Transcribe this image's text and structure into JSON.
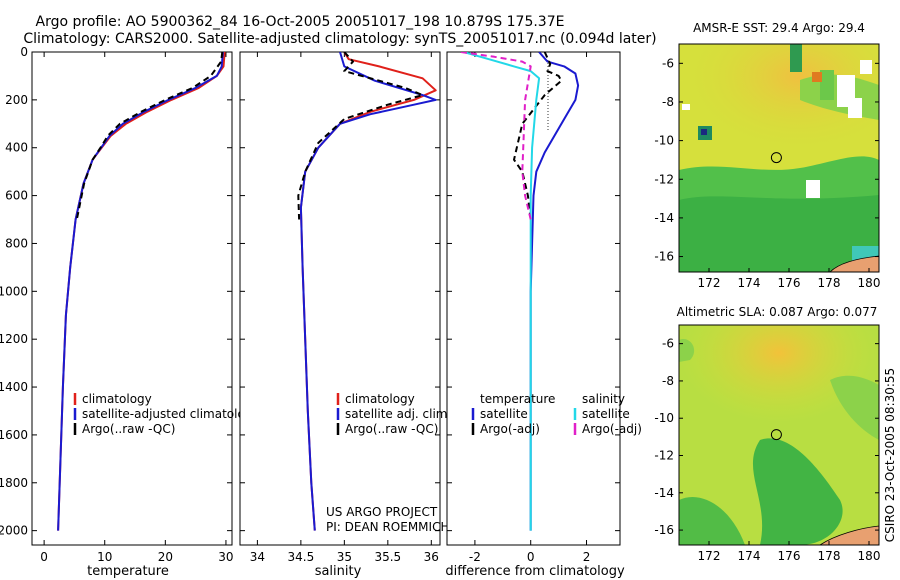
{
  "header": {
    "line1": "Argo profile: AO 5900362_84 16-Oct-2005 20051017_198 10.879S 175.37E",
    "line2": "Climatology: CARS2000. Satellite-adjusted climatology: synTS_20051017.nc (0.094d later)"
  },
  "credits": {
    "project": "US ARGO PROJECT",
    "pi": "PI: DEAN ROEMMICH",
    "stamp": "CSIRO 23-Oct-2005 08:30:55"
  },
  "colors": {
    "climatology": "#e0201a",
    "satellite": "#1a1ad0",
    "argo": "#000000",
    "satellite_salinity": "#22d8e8",
    "argo_adj_salinity": "#e020c8"
  },
  "chart_data": [
    {
      "type": "line",
      "name": "temperature-profile",
      "xlabel": "temperature",
      "ylabel": "",
      "xlim": [
        -2,
        31
      ],
      "ylim": [
        2060,
        0
      ],
      "xticks": [
        0,
        10,
        20,
        30
      ],
      "yticks": [
        0,
        200,
        400,
        600,
        800,
        1000,
        1200,
        1400,
        1600,
        1800,
        2000
      ],
      "legend": {
        "position": "lower-middle",
        "entries": [
          "climatology",
          "satellite-adjusted climatology",
          "Argo(..raw -QC)"
        ]
      },
      "series": [
        {
          "name": "climatology",
          "color": "#e0201a",
          "dash": "",
          "x": [
            29.8,
            29.6,
            28.5,
            25.5,
            21,
            17,
            13.5,
            11,
            9.5,
            8,
            6.5,
            5.2,
            4.3,
            3.6,
            3.1,
            2.7,
            2.3
          ],
          "y": [
            0,
            60,
            100,
            150,
            200,
            250,
            300,
            350,
            400,
            450,
            550,
            700,
            900,
            1100,
            1400,
            1700,
            2000
          ]
        },
        {
          "name": "satellite-adjusted climatology",
          "color": "#1a1ad0",
          "dash": "",
          "x": [
            29.5,
            29.3,
            28.5,
            25,
            20.5,
            16.5,
            13,
            10.8,
            9.4,
            8,
            6.5,
            5.2,
            4.3,
            3.6,
            3.1,
            2.7,
            2.3
          ],
          "y": [
            0,
            60,
            100,
            150,
            200,
            250,
            300,
            350,
            400,
            450,
            550,
            700,
            900,
            1100,
            1400,
            1700,
            2000
          ]
        },
        {
          "name": "Argo(..raw -QC)",
          "color": "#000000",
          "dash": "6,4",
          "x": [
            29.4,
            29.2,
            27.5,
            24.5,
            20,
            16,
            12.5,
            10.5,
            9.3,
            8,
            6.6,
            5.4
          ],
          "y": [
            0,
            40,
            100,
            150,
            200,
            250,
            300,
            350,
            400,
            450,
            550,
            700
          ]
        }
      ]
    },
    {
      "type": "line",
      "name": "salinity-profile",
      "xlabel": "salinity",
      "xlim": [
        33.8,
        36.1
      ],
      "ylim": [
        2060,
        0
      ],
      "xticks": [
        34,
        34.5,
        35,
        35.5,
        36
      ],
      "xticklabels": [
        "34",
        "34.5",
        "35",
        "35.5",
        "36"
      ],
      "legend": {
        "position": "lower-middle",
        "entries": [
          "climatology",
          "satellite adj. clim.",
          "Argo(..raw -QC)"
        ]
      },
      "series": [
        {
          "name": "climatology",
          "color": "#e0201a",
          "dash": "",
          "x": [
            35.0,
            35.05,
            35.4,
            35.9,
            36.05,
            35.8,
            35.3,
            34.95,
            34.7,
            34.55,
            34.5,
            34.52,
            34.55,
            34.58,
            34.62,
            34.66
          ],
          "y": [
            0,
            30,
            60,
            110,
            160,
            200,
            250,
            300,
            400,
            500,
            650,
            900,
            1200,
            1500,
            1800,
            2000
          ]
        },
        {
          "name": "satellite adj. clim.",
          "color": "#1a1ad0",
          "dash": "",
          "x": [
            34.95,
            35.0,
            35.35,
            35.9,
            36.05,
            35.8,
            35.3,
            34.95,
            34.7,
            34.55,
            34.5,
            34.52,
            34.55,
            34.58,
            34.62,
            34.66
          ],
          "y": [
            0,
            60,
            120,
            180,
            200,
            220,
            260,
            300,
            400,
            500,
            650,
            900,
            1200,
            1500,
            1800,
            2000
          ]
        },
        {
          "name": "Argo(..raw -QC)",
          "color": "#000000",
          "dash": "6,4",
          "x": [
            35.0,
            35.1,
            35.0,
            35.4,
            35.7,
            35.9,
            35.5,
            35.0,
            34.7,
            34.55,
            34.47,
            34.48
          ],
          "y": [
            0,
            40,
            80,
            120,
            150,
            180,
            220,
            280,
            380,
            500,
            600,
            700
          ]
        }
      ]
    },
    {
      "type": "line",
      "name": "difference-profile",
      "xlabel": "difference from climatology",
      "xlim": [
        -3,
        3.2
      ],
      "ylim": [
        2060,
        0
      ],
      "xticks": [
        -2,
        0,
        2
      ],
      "legend": {
        "position": "lower",
        "entries": [
          "temperature",
          "satellite",
          "Argo(-adj)",
          "salinity",
          "satellite",
          "Argo(-adj)"
        ]
      },
      "series": [
        {
          "name": "temperature satellite",
          "color": "#1a1ad0",
          "dash": "",
          "x": [
            0.3,
            0.6,
            1.2,
            1.6,
            1.7,
            1.6,
            1.2,
            0.5,
            0.2,
            0.1,
            0.05,
            0.0,
            0.0,
            0.0,
            0.0
          ],
          "y": [
            0,
            40,
            60,
            90,
            140,
            200,
            280,
            420,
            500,
            600,
            800,
            1000,
            1300,
            1600,
            2000
          ]
        },
        {
          "name": "temperature Argo(-adj)",
          "color": "#000000",
          "dash": "6,4",
          "x": [
            0.5,
            0.7,
            0.6,
            1.0,
            1.1,
            0.5,
            -0.3,
            -0.5,
            -0.6,
            -0.3,
            -0.1,
            0.0
          ],
          "y": [
            0,
            50,
            80,
            100,
            120,
            180,
            300,
            400,
            450,
            500,
            600,
            700
          ]
        },
        {
          "name": "salinity satellite",
          "color": "#22d8e8",
          "dash": "",
          "x": [
            -2.4,
            -1.5,
            -0.6,
            0.0,
            0.3,
            0.2,
            0.05,
            0.0,
            0.0,
            0.0,
            0.0
          ],
          "y": [
            0,
            30,
            60,
            80,
            110,
            200,
            400,
            600,
            1000,
            1500,
            2000
          ]
        },
        {
          "name": "salinity Argo(-adj)",
          "color": "#e020c8",
          "dash": "6,4",
          "x": [
            -2.5,
            -1.3,
            -0.3,
            0.0,
            -0.2,
            -0.3,
            -0.2,
            0.0
          ],
          "y": [
            0,
            20,
            40,
            60,
            200,
            500,
            600,
            700
          ]
        }
      ]
    },
    {
      "type": "heatmap",
      "name": "sst-map",
      "title": "AMSR-E SST: 29.4 Argo: 29.4",
      "xlim": [
        170.5,
        180.5
      ],
      "ylim": [
        -16.8,
        -5
      ],
      "xticks": [
        172,
        174,
        176,
        178,
        180
      ],
      "yticks": [
        -6,
        -8,
        -10,
        -12,
        -14,
        -16
      ],
      "marker": {
        "lon": 175.37,
        "lat": -10.879
      }
    },
    {
      "type": "heatmap",
      "name": "sla-map",
      "title": "Altimetric SLA: 0.087 Argo: 0.077",
      "xlim": [
        170.5,
        180.5
      ],
      "ylim": [
        -16.8,
        -5
      ],
      "xticks": [
        172,
        174,
        176,
        178,
        180
      ],
      "yticks": [
        -6,
        -8,
        -10,
        -12,
        -14,
        -16
      ],
      "marker": {
        "lon": 175.37,
        "lat": -10.879
      }
    }
  ]
}
